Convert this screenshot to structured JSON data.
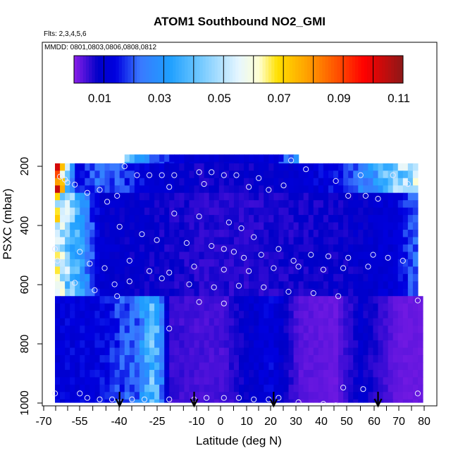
{
  "chart_data": {
    "type": "heatmap",
    "title": "ATOM1 Southbound NO2_GMI",
    "flights_label": "Flts: 2,3,4,5,6",
    "dates_label": "MMDD: 0801,0803,0806,0808,0812",
    "xlabel": "Latitude (deg N)",
    "ylabel": "PSXC (mbar)",
    "xlim": [
      -70,
      82
    ],
    "ylim": [
      1020,
      0
    ],
    "x_ticks": [
      -70,
      -55,
      -40,
      -25,
      -10,
      0,
      10,
      20,
      30,
      40,
      50,
      60,
      70,
      80
    ],
    "x_tick_labels": [
      "-70",
      "-55",
      "-40",
      "-25",
      "-10",
      "0",
      "10",
      "20",
      "30",
      "40",
      "50",
      "60",
      "70",
      "80"
    ],
    "x_minor_ticks": [
      -65,
      -60,
      -50,
      -45,
      -35,
      -30,
      -20,
      -15,
      -5,
      5,
      15,
      25,
      35,
      45,
      55,
      65,
      75
    ],
    "y_ticks": [
      200,
      400,
      600,
      800,
      1000
    ],
    "y_tick_labels": [
      "200",
      "400",
      "600",
      "800",
      "1000"
    ],
    "colorbar": {
      "min": 0.0,
      "max": 0.11,
      "tick_values": [
        0.01,
        0.03,
        0.05,
        0.07,
        0.09,
        0.11
      ],
      "tick_labels": [
        "0.01",
        "0.03",
        "0.05",
        "0.07",
        "0.09",
        "0.11"
      ],
      "boundaries": [
        0.0,
        0.01,
        0.02,
        0.03,
        0.04,
        0.05,
        0.06,
        0.07,
        0.08,
        0.09,
        0.1,
        0.11
      ],
      "color_stops": [
        {
          "v": 0.0,
          "c": "#8b1fe8"
        },
        {
          "v": 0.008,
          "c": "#0000c8"
        },
        {
          "v": 0.014,
          "c": "#0000e0"
        },
        {
          "v": 0.022,
          "c": "#3a78ff"
        },
        {
          "v": 0.032,
          "c": "#1e9fff"
        },
        {
          "v": 0.042,
          "c": "#70c8ff"
        },
        {
          "v": 0.055,
          "c": "#e6f6ff"
        },
        {
          "v": 0.062,
          "c": "#ffffd0"
        },
        {
          "v": 0.068,
          "c": "#ffe000"
        },
        {
          "v": 0.078,
          "c": "#ffa000"
        },
        {
          "v": 0.088,
          "c": "#ff5000"
        },
        {
          "v": 0.097,
          "c": "#ff0000"
        },
        {
          "v": 0.11,
          "c": "#8c1818"
        }
      ]
    },
    "pressure_levels": [
      200,
      225,
      250,
      275,
      300,
      325,
      350,
      375,
      400,
      425,
      450,
      475,
      500,
      525,
      550,
      575,
      600,
      625,
      650,
      675,
      700,
      725,
      750,
      775,
      800,
      825,
      850,
      875,
      900,
      925,
      950,
      975,
      1000
    ],
    "grid_lat_range": [
      -68,
      80
    ],
    "profiles": [
      {
        "name": "upper_band",
        "p_range": [
          160,
          340
        ],
        "lat_range": [
          -40,
          30
        ],
        "values_lat": [
          -40,
          -20,
          0,
          20,
          30
        ],
        "values": [
          0.04,
          0.012,
          0.009,
          0.012,
          0.03
        ]
      },
      {
        "name": "upper_troposphere",
        "p_range": [
          190,
          290
        ],
        "lat_range": [
          -68,
          78
        ],
        "values_lat": [
          -68,
          -60,
          -50,
          -30,
          -10,
          10,
          30,
          50,
          60,
          70,
          78
        ],
        "values": [
          0.1,
          0.013,
          0.022,
          0.012,
          0.007,
          0.008,
          0.01,
          0.016,
          0.03,
          0.045,
          0.05
        ]
      },
      {
        "name": "mid_troposphere",
        "p_range": [
          290,
          640
        ],
        "lat_range": [
          -68,
          78
        ],
        "values_lat": [
          -68,
          -50,
          -30,
          -10,
          10,
          30,
          50,
          70,
          78
        ],
        "values": [
          0.06,
          0.01,
          0.008,
          0.006,
          0.006,
          0.007,
          0.008,
          0.012,
          0.022
        ]
      },
      {
        "name": "lower_troposphere",
        "p_range": [
          640,
          1000
        ],
        "lat_range": [
          -68,
          80
        ],
        "values_lat": [
          -68,
          -50,
          -35,
          -28,
          -22,
          -12,
          0,
          10,
          20,
          30,
          45,
          55,
          70,
          80
        ],
        "values": [
          0.012,
          0.013,
          0.022,
          0.04,
          0.005,
          0.004,
          0.004,
          0.009,
          0.013,
          0.003,
          0.002,
          0.009,
          0.002,
          0.002
        ]
      }
    ],
    "sample_points": [
      {
        "lat": -40,
        "p": 200
      },
      {
        "lat": -35,
        "p": 230
      },
      {
        "lat": -30,
        "p": 230
      },
      {
        "lat": -25,
        "p": 230
      },
      {
        "lat": -20,
        "p": 230
      },
      {
        "lat": -10,
        "p": 220
      },
      {
        "lat": -5,
        "p": 220
      },
      {
        "lat": 0,
        "p": 230
      },
      {
        "lat": 5,
        "p": 230
      },
      {
        "lat": 14,
        "p": 240
      },
      {
        "lat": 27,
        "p": 180
      },
      {
        "lat": 33,
        "p": 210
      },
      {
        "lat": 45,
        "p": 250
      },
      {
        "lat": 55,
        "p": 230
      },
      {
        "lat": 68,
        "p": 230
      },
      {
        "lat": 74,
        "p": 260
      },
      {
        "lat": -66,
        "p": 235
      },
      {
        "lat": -64,
        "p": 245
      },
      {
        "lat": -63,
        "p": 255
      },
      {
        "lat": -60,
        "p": 262
      },
      {
        "lat": -55,
        "p": 290
      },
      {
        "lat": -50,
        "p": 280
      },
      {
        "lat": -43,
        "p": 300
      },
      {
        "lat": -22,
        "p": 270
      },
      {
        "lat": -8,
        "p": 260
      },
      {
        "lat": 10,
        "p": 270
      },
      {
        "lat": 18,
        "p": 280
      },
      {
        "lat": 24,
        "p": 265
      },
      {
        "lat": 50,
        "p": 300
      },
      {
        "lat": 57,
        "p": 300
      },
      {
        "lat": 62,
        "p": 310
      },
      {
        "lat": -47,
        "p": 320
      },
      {
        "lat": -20,
        "p": 360
      },
      {
        "lat": -10,
        "p": 370
      },
      {
        "lat": 2,
        "p": 390
      },
      {
        "lat": 7,
        "p": 410
      },
      {
        "lat": 12,
        "p": 440
      },
      {
        "lat": -42,
        "p": 405
      },
      {
        "lat": -33,
        "p": 430
      },
      {
        "lat": -27,
        "p": 450
      },
      {
        "lat": -15,
        "p": 460
      },
      {
        "lat": -5,
        "p": 470
      },
      {
        "lat": 0,
        "p": 480
      },
      {
        "lat": 4,
        "p": 490
      },
      {
        "lat": 8,
        "p": 510
      },
      {
        "lat": 15,
        "p": 500
      },
      {
        "lat": 22,
        "p": 480
      },
      {
        "lat": 28,
        "p": 520
      },
      {
        "lat": 35,
        "p": 500
      },
      {
        "lat": 42,
        "p": 505
      },
      {
        "lat": 50,
        "p": 510
      },
      {
        "lat": 60,
        "p": 500
      },
      {
        "lat": 66,
        "p": 510
      },
      {
        "lat": 72,
        "p": 520
      },
      {
        "lat": -58,
        "p": 490
      },
      {
        "lat": -54,
        "p": 530
      },
      {
        "lat": -48,
        "p": 545
      },
      {
        "lat": -38,
        "p": 520
      },
      {
        "lat": -30,
        "p": 555
      },
      {
        "lat": -22,
        "p": 560
      },
      {
        "lat": -12,
        "p": 540
      },
      {
        "lat": 0,
        "p": 550
      },
      {
        "lat": 10,
        "p": 555
      },
      {
        "lat": 20,
        "p": 545
      },
      {
        "lat": 30,
        "p": 540
      },
      {
        "lat": 40,
        "p": 550
      },
      {
        "lat": 48,
        "p": 545
      },
      {
        "lat": 58,
        "p": 540
      },
      {
        "lat": -60,
        "p": 595
      },
      {
        "lat": -52,
        "p": 620
      },
      {
        "lat": -44,
        "p": 600
      },
      {
        "lat": -38,
        "p": 590
      },
      {
        "lat": -25,
        "p": 580
      },
      {
        "lat": -14,
        "p": 600
      },
      {
        "lat": -4,
        "p": 610
      },
      {
        "lat": 6,
        "p": 605
      },
      {
        "lat": 16,
        "p": 610
      },
      {
        "lat": 26,
        "p": 625
      },
      {
        "lat": 36,
        "p": 630
      },
      {
        "lat": 46,
        "p": 640
      },
      {
        "lat": -43,
        "p": 640
      },
      {
        "lat": -10,
        "p": 660
      },
      {
        "lat": 0,
        "p": 665
      },
      {
        "lat": 78,
        "p": 655
      },
      {
        "lat": -68,
        "p": 480
      },
      {
        "lat": -67,
        "p": 520
      },
      {
        "lat": -22,
        "p": 750
      },
      {
        "lat": 48,
        "p": 950
      },
      {
        "lat": 56,
        "p": 955
      },
      {
        "lat": -68,
        "p": 970
      },
      {
        "lat": -58,
        "p": 970
      },
      {
        "lat": -55,
        "p": 985
      },
      {
        "lat": -50,
        "p": 990
      },
      {
        "lat": -45,
        "p": 990
      },
      {
        "lat": -42,
        "p": 1000
      },
      {
        "lat": -37,
        "p": 990
      },
      {
        "lat": -32,
        "p": 990
      },
      {
        "lat": -22,
        "p": 990
      },
      {
        "lat": -12,
        "p": 990
      },
      {
        "lat": -7,
        "p": 985
      },
      {
        "lat": 0,
        "p": 985
      },
      {
        "lat": 6,
        "p": 985
      },
      {
        "lat": 12,
        "p": 990
      },
      {
        "lat": 18,
        "p": 990
      },
      {
        "lat": 22,
        "p": 985
      },
      {
        "lat": 30,
        "p": 1000
      },
      {
        "lat": 40,
        "p": 1005
      },
      {
        "lat": 45,
        "p": 1010
      },
      {
        "lat": 78,
        "p": 970
      }
    ],
    "arrow_markers_lat": [
      -42,
      -12,
      20,
      62
    ]
  }
}
